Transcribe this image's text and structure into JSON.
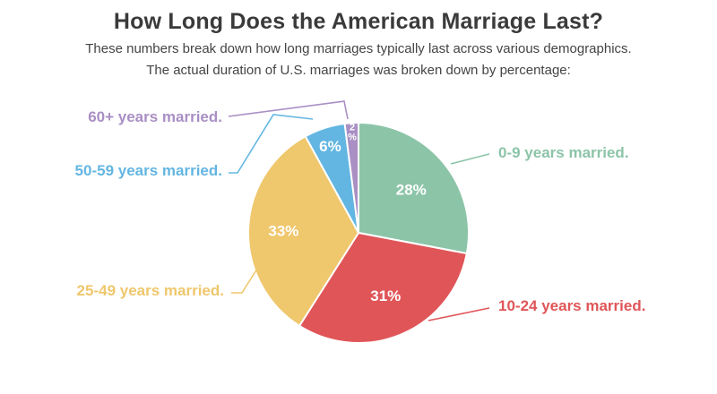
{
  "header": {
    "title": "How Long Does the American Marriage Last?",
    "subtitle_line1": "These numbers break down how long marriages typically last across various demographics.",
    "subtitle_line2": "The actual duration of U.S. marriages was broken down by percentage:"
  },
  "chart_data": {
    "type": "pie",
    "title": "How Long Does the American Marriage Last?",
    "slices": [
      {
        "label": "0-9 years married.",
        "value": 28,
        "value_label": "28%",
        "color": "#8cc4a8"
      },
      {
        "label": "10-24 years married.",
        "value": 31,
        "value_label": "31%",
        "color": "#e05558"
      },
      {
        "label": "25-49 years married.",
        "value": 33,
        "value_label": "33%",
        "color": "#efc76c"
      },
      {
        "label": "50-59 years married.",
        "value": 6,
        "value_label": "6%",
        "color": "#63b6e2"
      },
      {
        "label": "60+ years married.",
        "value": 2,
        "value_label": "2%",
        "color": "#a98fc4"
      }
    ]
  }
}
